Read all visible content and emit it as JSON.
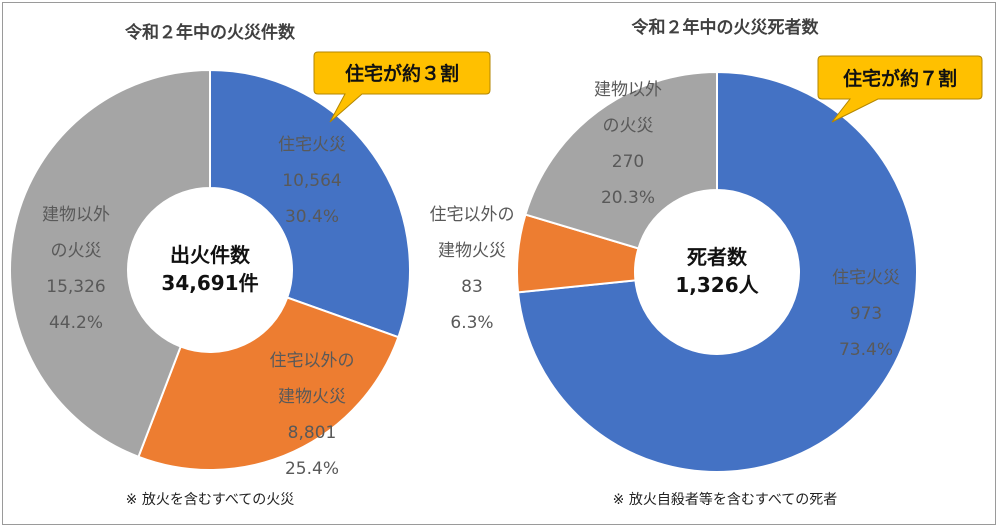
{
  "chart_data": [
    {
      "type": "pie",
      "title": "令和２年中の火災件数",
      "center_label": [
        "出火件数",
        "34,691件"
      ],
      "callout": "住宅が約３割",
      "note": "※ 放火を含むすべての火災",
      "slices": [
        {
          "label": [
            "住宅火災"
          ],
          "value": 10564,
          "value_text": "10,564",
          "percent_text": "30.4%",
          "color": "#4472c4"
        },
        {
          "label": [
            "住宅以外の",
            "建物火災"
          ],
          "value": 8801,
          "value_text": "8,801",
          "percent_text": "25.4%",
          "color": "#ed7d31"
        },
        {
          "label": [
            "建物以外",
            "の火災"
          ],
          "value": 15326,
          "value_text": "15,326",
          "percent_text": "44.2%",
          "color": "#a5a5a5"
        }
      ]
    },
    {
      "type": "pie",
      "title": "令和２年中の火災死者数",
      "center_label": [
        "死者数",
        "1,326人"
      ],
      "callout": "住宅が約７割",
      "note": "※ 放火自殺者等を含むすべての死者",
      "slices": [
        {
          "label": [
            "住宅火災"
          ],
          "value": 973,
          "value_text": "973",
          "percent_text": "73.4%",
          "color": "#4472c4"
        },
        {
          "label": [
            "住宅以外の",
            "建物火災"
          ],
          "value": 83,
          "value_text": "83",
          "percent_text": "6.3%",
          "color": "#ed7d31"
        },
        {
          "label": [
            "建物以外",
            "の火災"
          ],
          "value": 270,
          "value_text": "270",
          "percent_text": "20.3%",
          "color": "#a5a5a5"
        }
      ]
    }
  ]
}
